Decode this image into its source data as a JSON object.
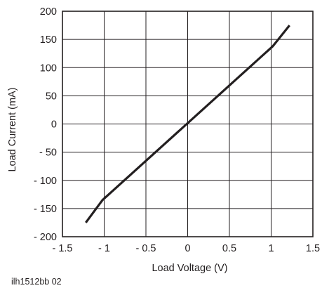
{
  "chart_data": {
    "type": "line",
    "title": "",
    "xlabel": "Load Voltage (V)",
    "ylabel": "Load Current (mA)",
    "xlim": [
      -1.5,
      1.5
    ],
    "ylim": [
      -200,
      200
    ],
    "x_ticks": [
      -1.5,
      -1,
      -0.5,
      0,
      0.5,
      1,
      1.5
    ],
    "x_tick_labels": [
      "- 1.5",
      "- 1",
      "- 0.5",
      "0",
      "0.5",
      "1",
      "1.5"
    ],
    "y_ticks": [
      200,
      150,
      100,
      50,
      0,
      -50,
      -100,
      -150,
      -200
    ],
    "y_tick_labels": [
      "200",
      "150",
      "100",
      "50",
      "0",
      "- 50",
      "- 100",
      "- 150",
      "- 200"
    ],
    "grid": true,
    "series": [
      {
        "name": "",
        "color": "#231f20",
        "x": [
          -1.22,
          -1.02,
          1.02,
          1.22
        ],
        "y": [
          -175,
          -135,
          138,
          175
        ]
      }
    ],
    "figure_id": "ilh1512bb  02"
  }
}
